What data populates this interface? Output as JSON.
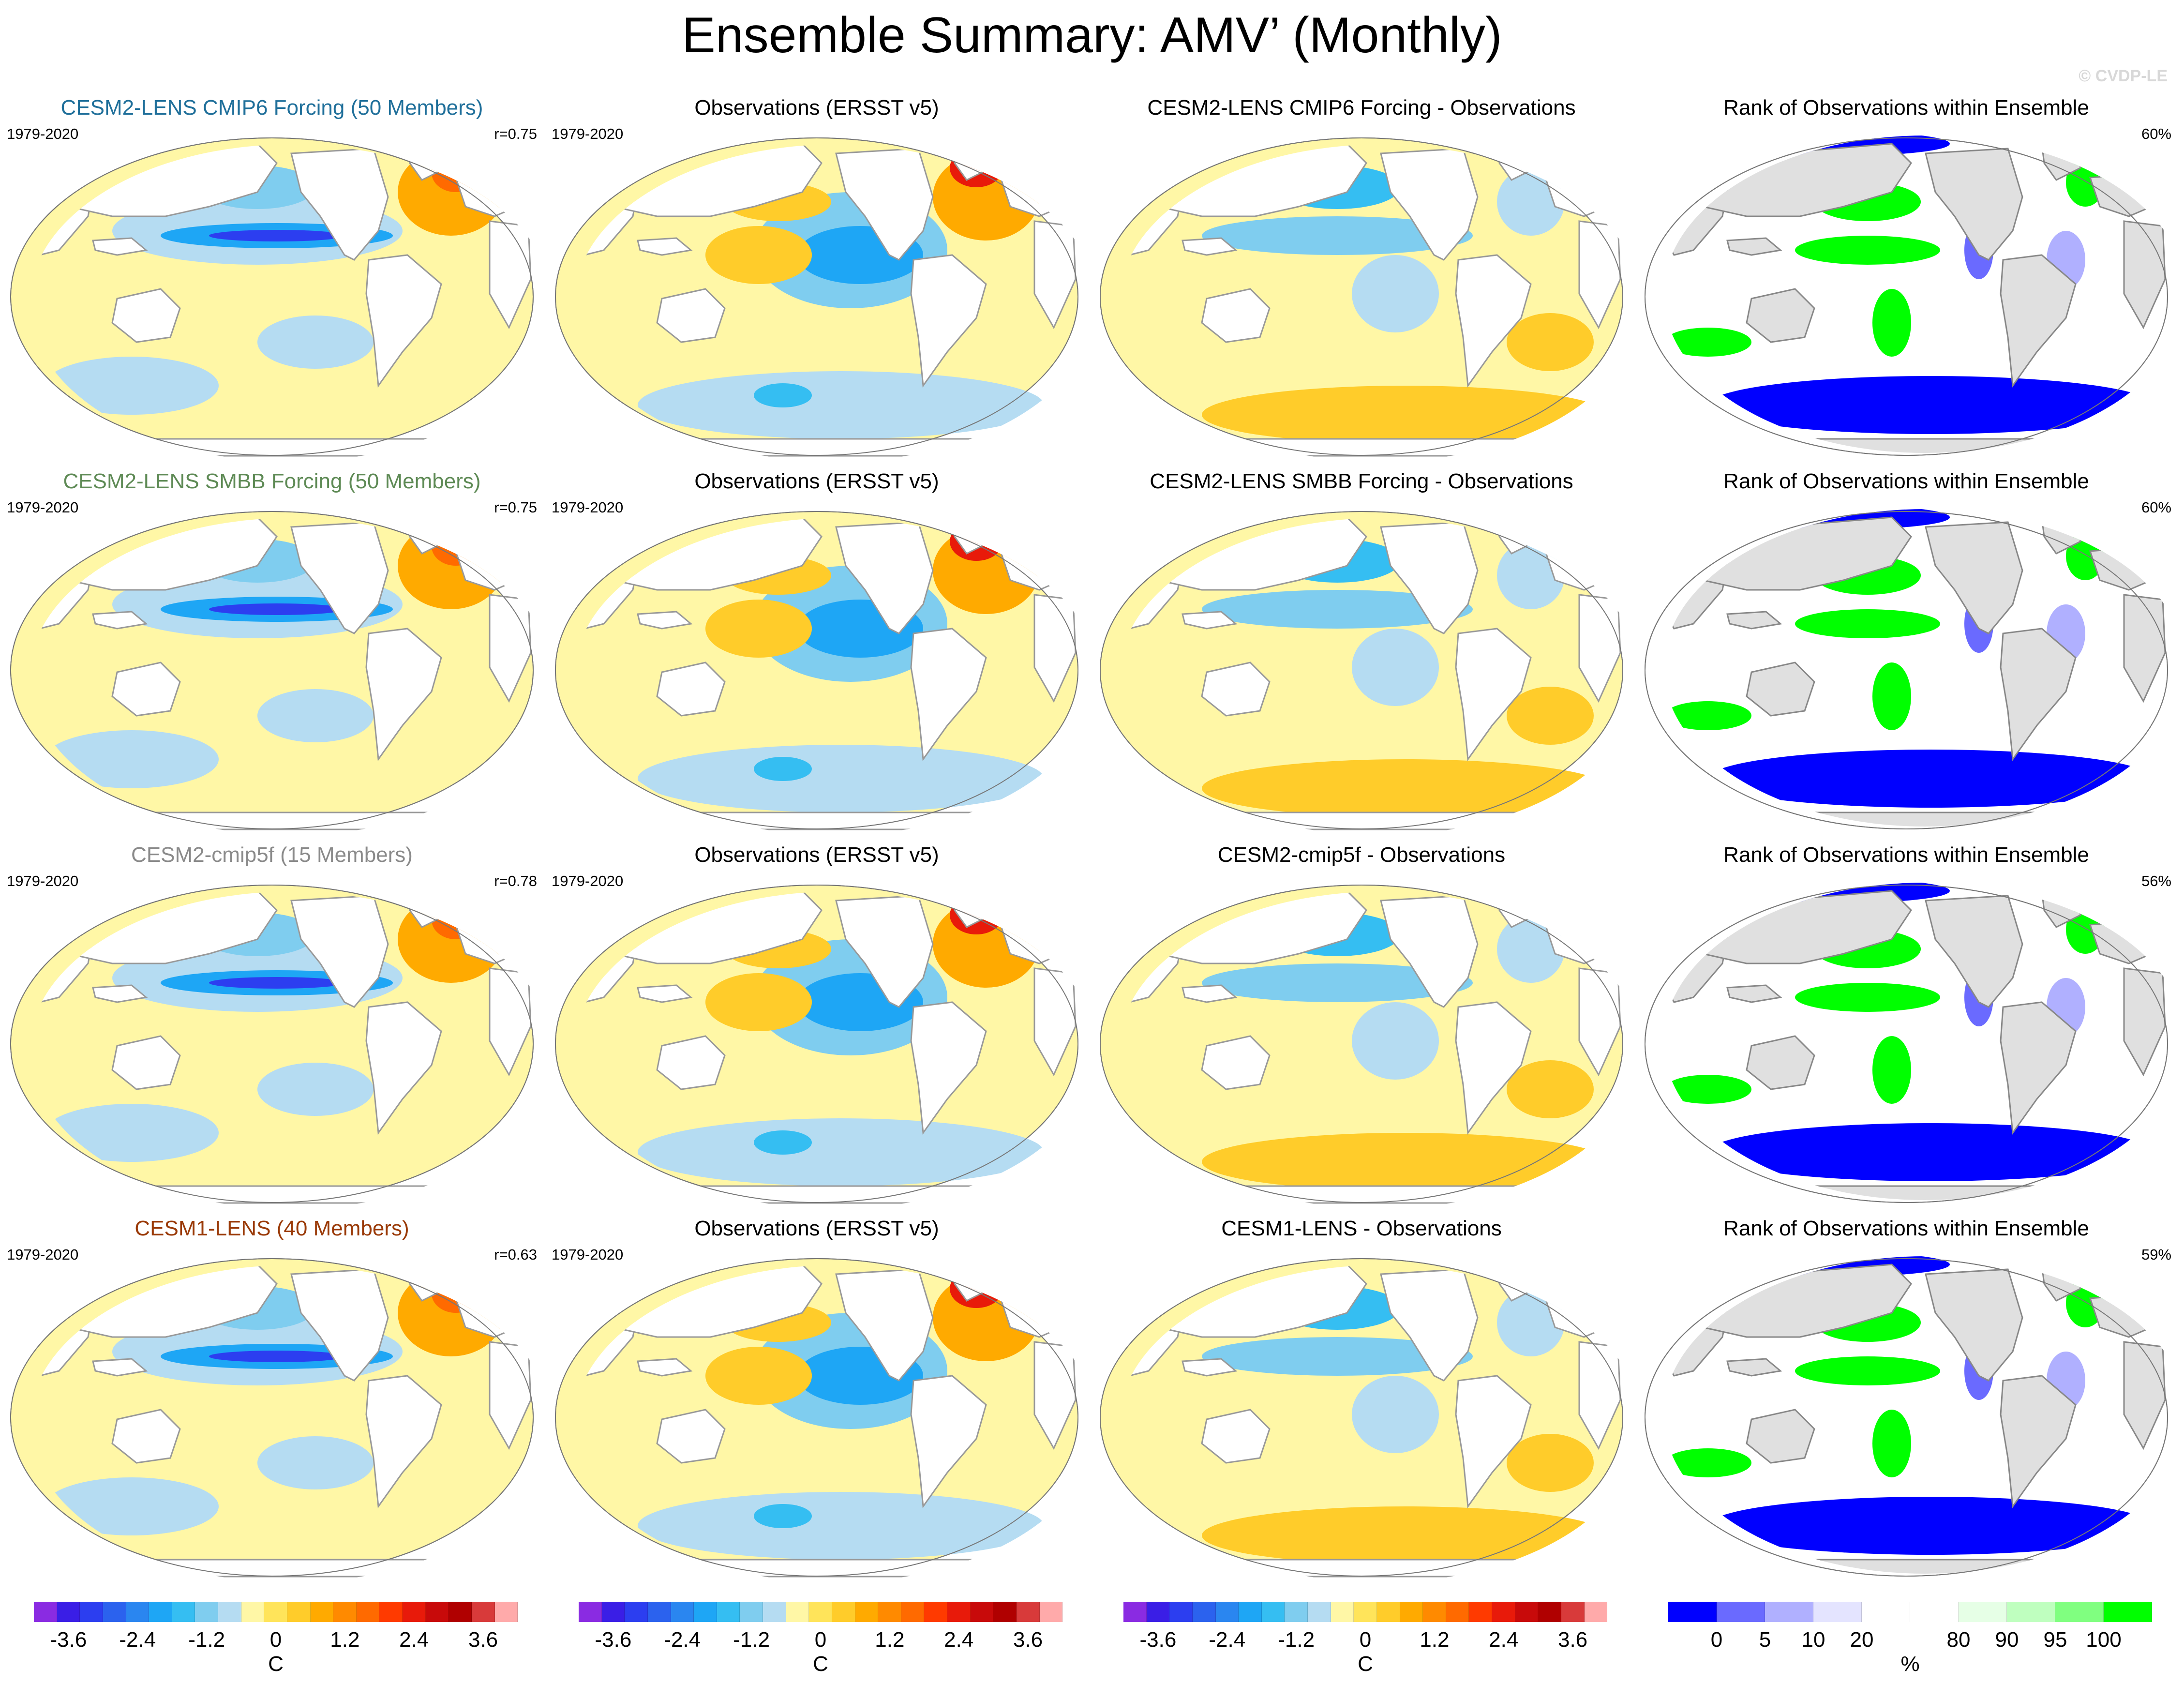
{
  "header": {
    "title": "Ensemble Summary: AMV’ (Monthly)",
    "copyright": "© CVDP-LE"
  },
  "colors": {
    "ocean_base": "#fff7a6",
    "land": "#ffffff",
    "rank_land": "#e0e0e0",
    "row_title_colors": [
      "#1f6f9a",
      "#5e8a55",
      "#8a8a8a",
      "#9a3a08"
    ]
  },
  "rows": [
    {
      "model_title": "CESM2-LENS CMIP6 Forcing (50 Members)",
      "period": "1979-2020",
      "pattern_correlation": "r=0.75",
      "obs_title": "Observations (ERSST v5)",
      "obs_period": "1979-2020",
      "diff_title": "CESM2-LENS CMIP6 Forcing - Observations",
      "rank_title": "Rank of Observations within Ensemble",
      "rank_percent": "60%"
    },
    {
      "model_title": "CESM2-LENS SMBB Forcing (50 Members)",
      "period": "1979-2020",
      "pattern_correlation": "r=0.75",
      "obs_title": "Observations (ERSST v5)",
      "obs_period": "1979-2020",
      "diff_title": "CESM2-LENS SMBB Forcing - Observations",
      "rank_title": "Rank of Observations within Ensemble",
      "rank_percent": "60%"
    },
    {
      "model_title": "CESM2-cmip5f (15 Members)",
      "period": "1979-2020",
      "pattern_correlation": "r=0.78",
      "obs_title": "Observations (ERSST v5)",
      "obs_period": "1979-2020",
      "diff_title": "CESM2-cmip5f - Observations",
      "rank_title": "Rank of Observations within Ensemble",
      "rank_percent": "56%"
    },
    {
      "model_title": "CESM1-LENS (40 Members)",
      "period": "1979-2020",
      "pattern_correlation": "r=0.63",
      "obs_title": "Observations (ERSST v5)",
      "obs_period": "1979-2020",
      "diff_title": "CESM1-LENS - Observations",
      "rank_title": "Rank of Observations within Ensemble",
      "rank_percent": "59%"
    }
  ],
  "sst_colorbar": {
    "unit": "C",
    "tick_labels": [
      "-3.6",
      "-2.4",
      "-1.2",
      "0",
      "1.2",
      "2.4",
      "3.6"
    ],
    "tick_values": [
      -3.6,
      -2.4,
      -1.2,
      0,
      1.2,
      2.4,
      3.6
    ],
    "range": [
      -4.2,
      4.2
    ],
    "colors": [
      "#8a2be2",
      "#3a1ee6",
      "#2c3ef0",
      "#2b62ee",
      "#2a86f0",
      "#1ea6f5",
      "#35bef2",
      "#7fcdef",
      "#b5dcf2",
      "#fff7a6",
      "#ffe45a",
      "#ffcc2a",
      "#ffaa00",
      "#ff8a00",
      "#ff6a00",
      "#ff3a00",
      "#e81a0a",
      "#c80a0a",
      "#b00000",
      "#d83a3a",
      "#ffaaaa"
    ]
  },
  "rank_colorbar": {
    "unit": "%",
    "tick_labels": [
      "0",
      "5",
      "10",
      "20",
      "80",
      "90",
      "95",
      "100"
    ],
    "tick_values": [
      0,
      5,
      10,
      20,
      80,
      90,
      95,
      100
    ],
    "colors": [
      "#0000ff",
      "#6a6aff",
      "#b0b0ff",
      "#e4e4ff",
      "#ffffff",
      "#ffffff",
      "#e6ffe6",
      "#bfffbf",
      "#80ff80",
      "#00ff00"
    ]
  }
}
